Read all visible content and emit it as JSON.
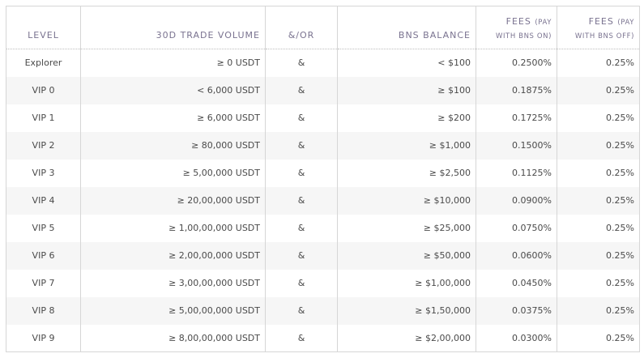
{
  "headers": {
    "level": "LEVEL",
    "volume": "30D TRADE VOLUME",
    "andor": "&/OR",
    "bns_balance": "BNS BALANCE",
    "fees_on_main": "FEES",
    "fees_on_sub1": "(PAY",
    "fees_on_sub2": "WITH BNS ON)",
    "fees_off_main": "FEES",
    "fees_off_sub1": "(PAY",
    "fees_off_sub2": "WITH BNS OFF)"
  },
  "rows": [
    {
      "level": "Explorer",
      "volume": "≥ 0 USDT",
      "andor": "&",
      "bns": "< $100",
      "fee_on": "0.2500%",
      "fee_off": "0.25%"
    },
    {
      "level": "VIP 0",
      "volume": "< 6,000 USDT",
      "andor": "&",
      "bns": "≥ $100",
      "fee_on": "0.1875%",
      "fee_off": "0.25%"
    },
    {
      "level": "VIP 1",
      "volume": "≥ 6,000 USDT",
      "andor": "&",
      "bns": "≥ $200",
      "fee_on": "0.1725%",
      "fee_off": "0.25%"
    },
    {
      "level": "VIP 2",
      "volume": "≥ 80,000 USDT",
      "andor": "&",
      "bns": "≥ $1,000",
      "fee_on": "0.1500%",
      "fee_off": "0.25%"
    },
    {
      "level": "VIP 3",
      "volume": "≥ 5,00,000 USDT",
      "andor": "&",
      "bns": "≥ $2,500",
      "fee_on": "0.1125%",
      "fee_off": "0.25%"
    },
    {
      "level": "VIP 4",
      "volume": "≥ 20,00,000 USDT",
      "andor": "&",
      "bns": "≥ $10,000",
      "fee_on": "0.0900%",
      "fee_off": "0.25%"
    },
    {
      "level": "VIP 5",
      "volume": "≥ 1,00,00,000 USDT",
      "andor": "&",
      "bns": "≥ $25,000",
      "fee_on": "0.0750%",
      "fee_off": "0.25%"
    },
    {
      "level": "VIP 6",
      "volume": "≥ 2,00,00,000 USDT",
      "andor": "&",
      "bns": "≥ $50,000",
      "fee_on": "0.0600%",
      "fee_off": "0.25%"
    },
    {
      "level": "VIP 7",
      "volume": "≥ 3,00,00,000 USDT",
      "andor": "&",
      "bns": "≥ $1,00,000",
      "fee_on": "0.0450%",
      "fee_off": "0.25%"
    },
    {
      "level": "VIP 8",
      "volume": "≥ 5,00,00,000 USDT",
      "andor": "&",
      "bns": "≥ $1,50,000",
      "fee_on": "0.0375%",
      "fee_off": "0.25%"
    },
    {
      "level": "VIP 9",
      "volume": "≥ 8,00,00,000 USDT",
      "andor": "&",
      "bns": "≥ $2,00,000",
      "fee_on": "0.0300%",
      "fee_off": "0.25%"
    }
  ]
}
